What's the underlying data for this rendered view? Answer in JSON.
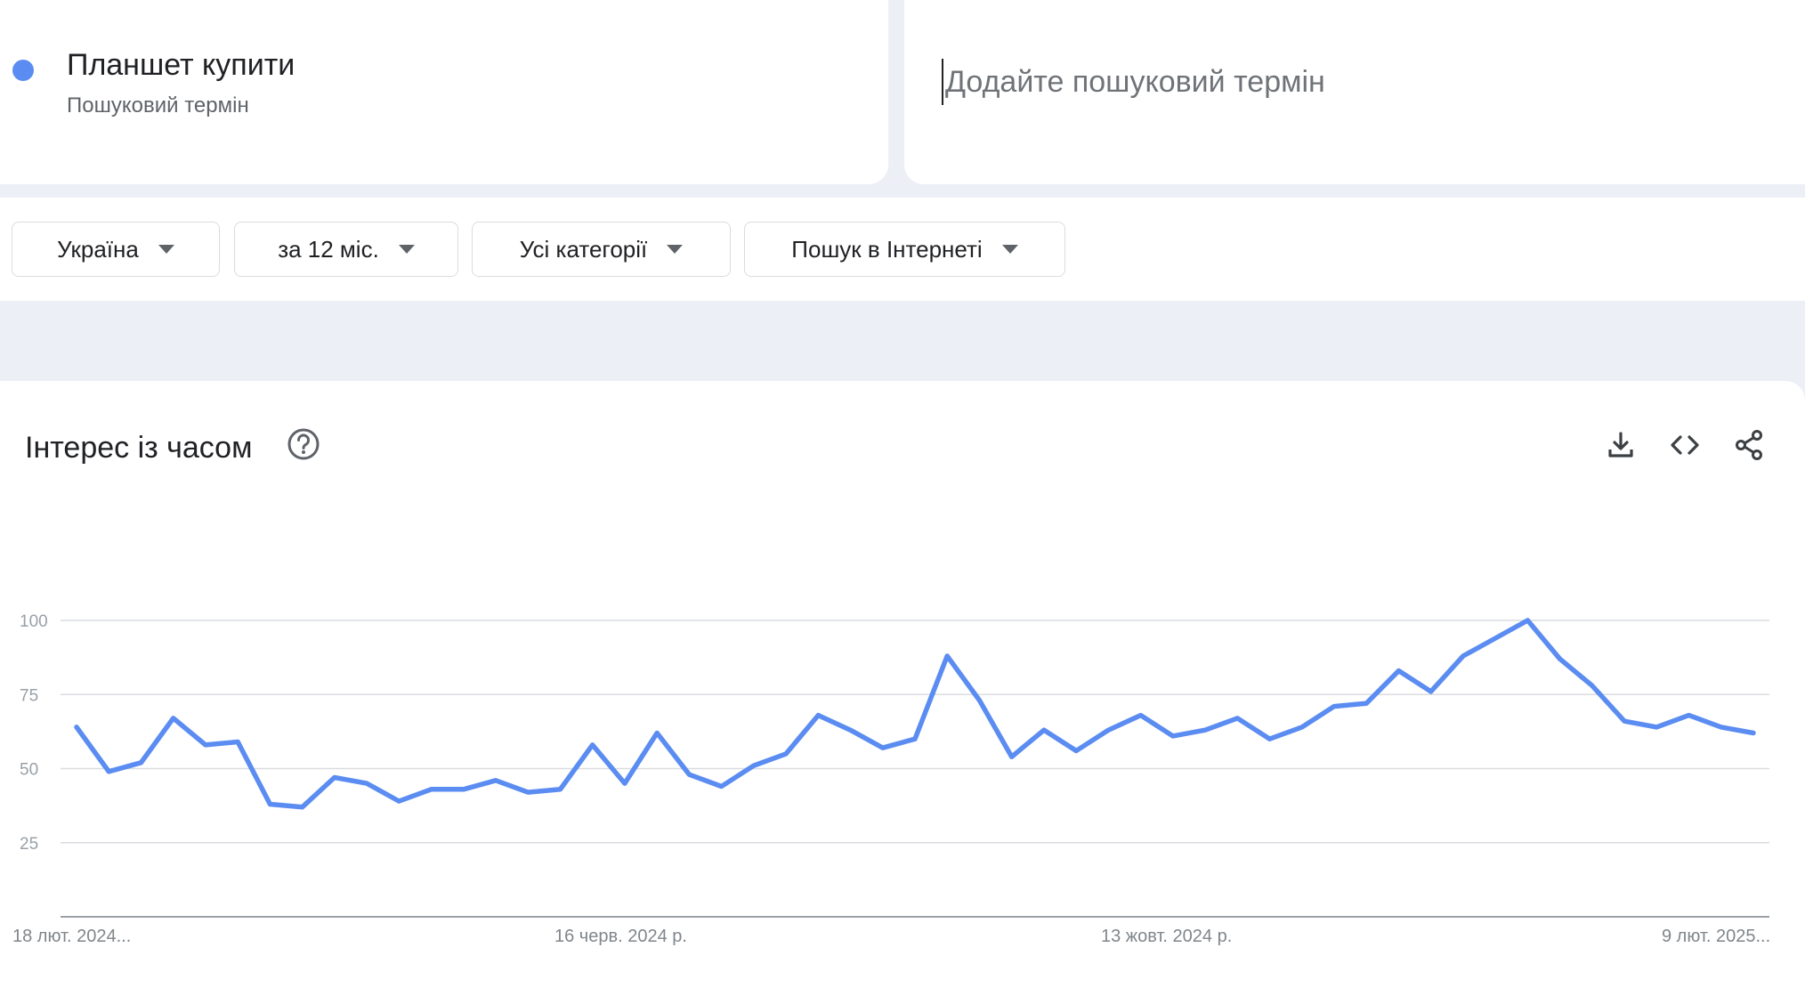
{
  "term": {
    "title": "Планшет купити",
    "subtitle": "Пошуковий термін",
    "color": "#5b8cf1"
  },
  "add_term": {
    "placeholder": "Додайте пошуковий термін"
  },
  "filters": [
    {
      "label": "Україна"
    },
    {
      "label": "за 12 міс."
    },
    {
      "label": "Усі категорії"
    },
    {
      "label": "Пошук в Інтернеті"
    }
  ],
  "panel": {
    "title": "Інтерес із часом",
    "icons": [
      "help-icon",
      "download-icon",
      "embed-code-icon",
      "share-icon"
    ]
  },
  "chart_data": {
    "type": "line",
    "title": "",
    "xlabel": "",
    "ylabel": "",
    "ylim": [
      0,
      100
    ],
    "yticks": [
      25,
      50,
      75,
      100
    ],
    "grid": true,
    "x_tick_labels": [
      "18 лют. 2024...",
      "16 черв. 2024 р.",
      "13 жовт. 2024 р.",
      "9 лют. 2025..."
    ],
    "series": [
      {
        "color": "#5b8cf1",
        "values": [
          64,
          49,
          52,
          67,
          58,
          59,
          38,
          37,
          47,
          45,
          39,
          43,
          43,
          46,
          42,
          43,
          58,
          45,
          62,
          48,
          44,
          51,
          55,
          68,
          63,
          57,
          60,
          88,
          73,
          54,
          63,
          56,
          63,
          68,
          61,
          63,
          67,
          60,
          64,
          71,
          72,
          83,
          76,
          88,
          94,
          100,
          87,
          78,
          66,
          64,
          68,
          64,
          62
        ]
      }
    ]
  }
}
